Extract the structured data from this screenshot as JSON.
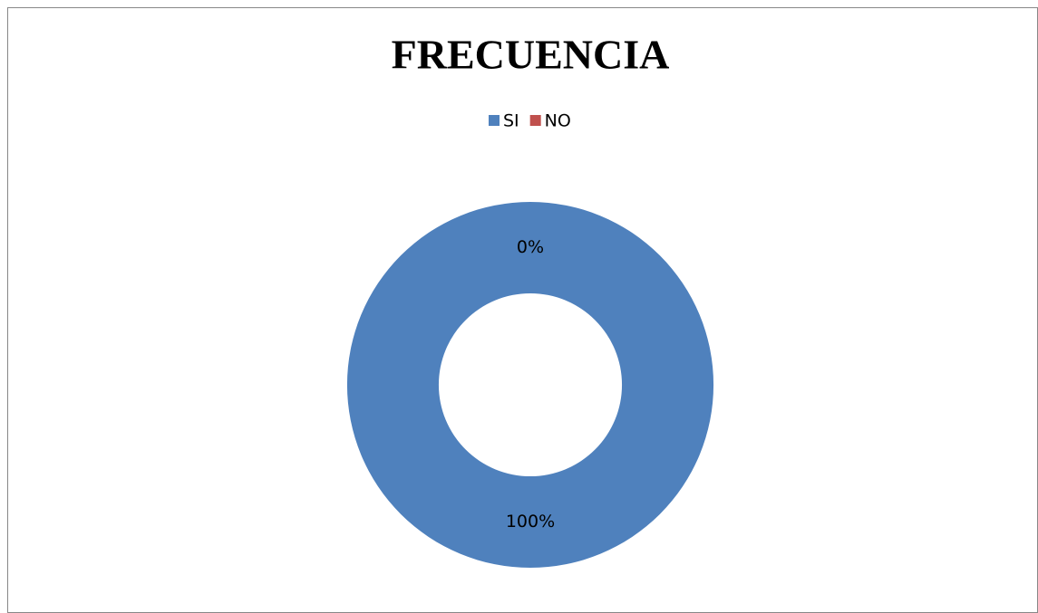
{
  "chart_data": {
    "type": "donut",
    "title": "FRECUENCIA",
    "categories": [
      "SI",
      "NO"
    ],
    "values": [
      100,
      0
    ],
    "value_labels": [
      "100%",
      "0%"
    ],
    "colors": [
      "#4f81bd",
      "#c0504d"
    ],
    "legend": "top"
  }
}
